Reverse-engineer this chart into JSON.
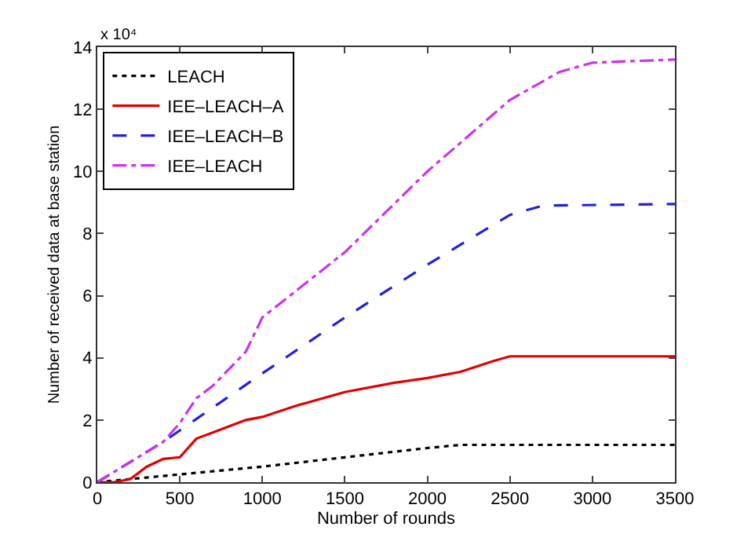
{
  "chart_data": {
    "type": "line",
    "xlabel": "Number of rounds",
    "ylabel": "Number of received data at base station",
    "annotations": [
      "x 10⁴"
    ],
    "xlim": [
      0,
      3500
    ],
    "xticks": [
      0,
      500,
      1000,
      1500,
      2000,
      2500,
      3000,
      3500
    ],
    "ylim": [
      0,
      14
    ],
    "yticks": [
      0,
      2,
      4,
      6,
      8,
      10,
      12,
      14
    ],
    "grid": false,
    "legend": "top left",
    "marker": "none",
    "series": [
      {
        "name": "LEACH",
        "color": "#000000",
        "line_style": "dotted",
        "x": [
          0,
          500,
          1000,
          1500,
          2000,
          2200,
          3500
        ],
        "values": [
          0,
          0.25,
          0.5,
          0.8,
          1.1,
          1.2,
          1.2
        ]
      },
      {
        "name": "IEE–LEACH–A",
        "color": "#e00000",
        "line_style": "solid",
        "x": [
          0,
          100,
          200,
          300,
          400,
          500,
          600,
          700,
          800,
          900,
          1000,
          1200,
          1500,
          1800,
          2000,
          2200,
          2400,
          2500,
          3500
        ],
        "values": [
          0,
          0,
          0.1,
          0.5,
          0.75,
          0.8,
          1.4,
          1.6,
          1.8,
          2.0,
          2.1,
          2.45,
          2.9,
          3.2,
          3.35,
          3.55,
          3.9,
          4.05,
          4.05
        ]
      },
      {
        "name": "IEE–LEACH–B",
        "color": "#2020e0",
        "line_style": "dashed",
        "x": [
          0,
          400,
          1000,
          1500,
          2000,
          2500,
          2700,
          3500
        ],
        "values": [
          0,
          1.3,
          3.5,
          5.3,
          7.0,
          8.6,
          8.9,
          8.95
        ]
      },
      {
        "name": "IEE–LEACH",
        "color": "#cc33ee",
        "line_style": "dashdot",
        "x": [
          0,
          400,
          500,
          600,
          700,
          900,
          1000,
          1500,
          2000,
          2500,
          2800,
          3000,
          3500
        ],
        "values": [
          0,
          1.3,
          1.9,
          2.7,
          3.1,
          4.2,
          5.3,
          7.4,
          10.0,
          12.3,
          13.2,
          13.5,
          13.6
        ]
      }
    ]
  }
}
